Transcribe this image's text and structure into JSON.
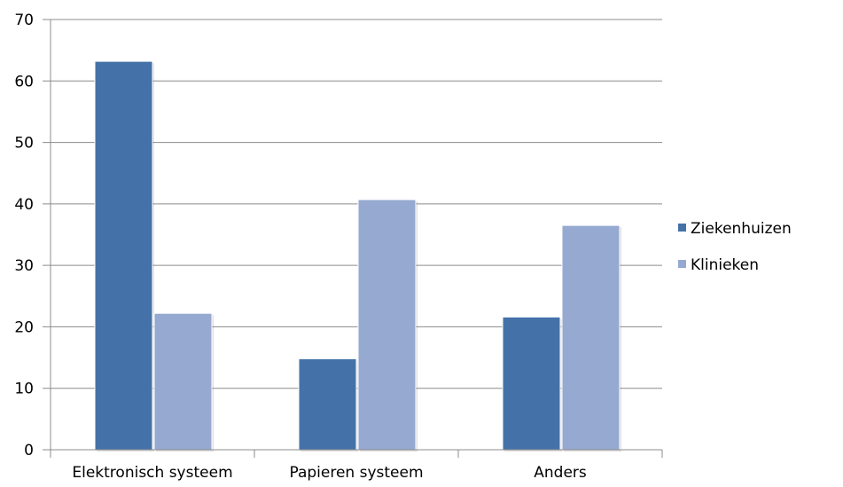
{
  "chart_data": {
    "type": "bar",
    "title": "",
    "xlabel": "",
    "ylabel": "",
    "categories": [
      "Elektronisch systeem",
      "Papieren systeem",
      "Anders"
    ],
    "series": [
      {
        "name": "Ziekenhuizen",
        "values": [
          63.2,
          14.8,
          21.6
        ],
        "color": "#4472A8"
      },
      {
        "name": "Klinieken",
        "values": [
          22.2,
          40.7,
          36.5
        ],
        "color": "#95A9D1"
      }
    ],
    "ylim": [
      0,
      70
    ],
    "yticks": [
      0,
      10,
      20,
      30,
      40,
      50,
      60,
      70
    ],
    "ytick_labels": [
      "0",
      "10",
      "20",
      "30",
      "40",
      "50",
      "60",
      "70"
    ],
    "grid": true,
    "legend_position": "right"
  }
}
